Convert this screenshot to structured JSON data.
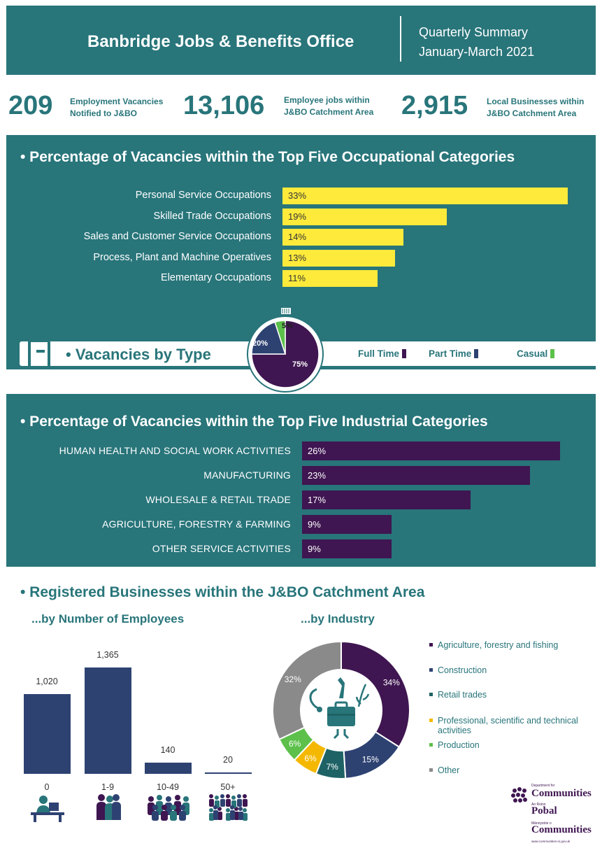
{
  "header": {
    "title": "Banbridge Jobs & Benefits Office",
    "subtitle_line1": "Quarterly Summary",
    "subtitle_line2": "January-March 2021"
  },
  "stats": [
    {
      "value": "209",
      "label_line1": "Employment Vacancies",
      "label_line2": "Notified to J&BO"
    },
    {
      "value": "13,106",
      "label_line1": "Employee jobs within",
      "label_line2": "J&BO Catchment Area"
    },
    {
      "value": "2,915",
      "label_line1": "Local Businesses within",
      "label_line2": "J&BO Catchment Area"
    }
  ],
  "colors": {
    "teal": "#28757a",
    "yellow": "#fdea3b",
    "purple": "#3f1651",
    "navy": "#2e4272",
    "green": "#5cc04a",
    "orange": "#f5b800",
    "grey": "#8a8a8a",
    "dark_teal": "#1e6265"
  },
  "chart_data": [
    {
      "type": "bar",
      "title": "• Percentage of Vacancies within the Top Five Occupational Categories",
      "orientation": "horizontal",
      "categories": [
        "Personal Service Occupations",
        "Skilled Trade Occupations",
        "Sales and Customer Service Occupations",
        "Process, Plant and Machine Operatives",
        "Elementary Occupations"
      ],
      "values": [
        33,
        19,
        14,
        13,
        11
      ],
      "value_labels": [
        "33%",
        "19%",
        "14%",
        "13%",
        "11%"
      ],
      "unit": "%",
      "xlim": [
        0,
        33
      ]
    },
    {
      "type": "pie",
      "title": "• Vacancies by Type",
      "categories": [
        "Full Time",
        "Part Time",
        "Casual"
      ],
      "values": [
        75,
        20,
        5
      ],
      "value_labels": [
        "75%",
        "20%",
        "5%"
      ],
      "colors": [
        "#3f1651",
        "#2e4272",
        "#5cc04a"
      ],
      "legend": "right"
    },
    {
      "type": "bar",
      "title": "• Percentage of Vacancies within the Top Five Industrial Categories",
      "orientation": "horizontal",
      "categories": [
        "HUMAN HEALTH AND SOCIAL WORK ACTIVITIES",
        "MANUFACTURING",
        "WHOLESALE & RETAIL TRADE",
        "AGRICULTURE, FORESTRY & FARMING",
        "OTHER SERVICE ACTIVITIES"
      ],
      "values": [
        26,
        23,
        17,
        9,
        9
      ],
      "value_labels": [
        "26%",
        "23%",
        "17%",
        "9%",
        "9%"
      ],
      "unit": "%",
      "xlim": [
        0,
        26
      ]
    },
    {
      "type": "bar",
      "title": "...by Number of Employees",
      "categories": [
        "0",
        "1-9",
        "10-49",
        "50+"
      ],
      "values": [
        1020,
        1365,
        140,
        20
      ],
      "value_labels": [
        "1,020",
        "1,365",
        "140",
        "20"
      ],
      "ylim": [
        0,
        1365
      ]
    },
    {
      "type": "pie",
      "subtype": "donut",
      "title": "...by Industry",
      "categories": [
        "Agriculture, forestry and fishing",
        "Construction",
        "Retail trades",
        "Professional, scientific and technical activities",
        "Production",
        "Other"
      ],
      "values": [
        34,
        15,
        7,
        6,
        6,
        32
      ],
      "value_labels": [
        "34%",
        "15%",
        "7%",
        "6%",
        "6%",
        "32%"
      ],
      "colors": [
        "#3f1651",
        "#2e4272",
        "#1e6265",
        "#f5b800",
        "#5cc04a",
        "#8a8a8a"
      ],
      "legend": "right"
    }
  ],
  "section4": {
    "title": "• Registered Businesses within the J&BO Catchment Area"
  },
  "logo": {
    "line1": "Department for",
    "line2": "Communities",
    "line3": "An Roinn",
    "line4": "Pobal",
    "line5": "Männystrie o",
    "line6": "Communities",
    "url": "www.communities-ni.gov.uk"
  }
}
